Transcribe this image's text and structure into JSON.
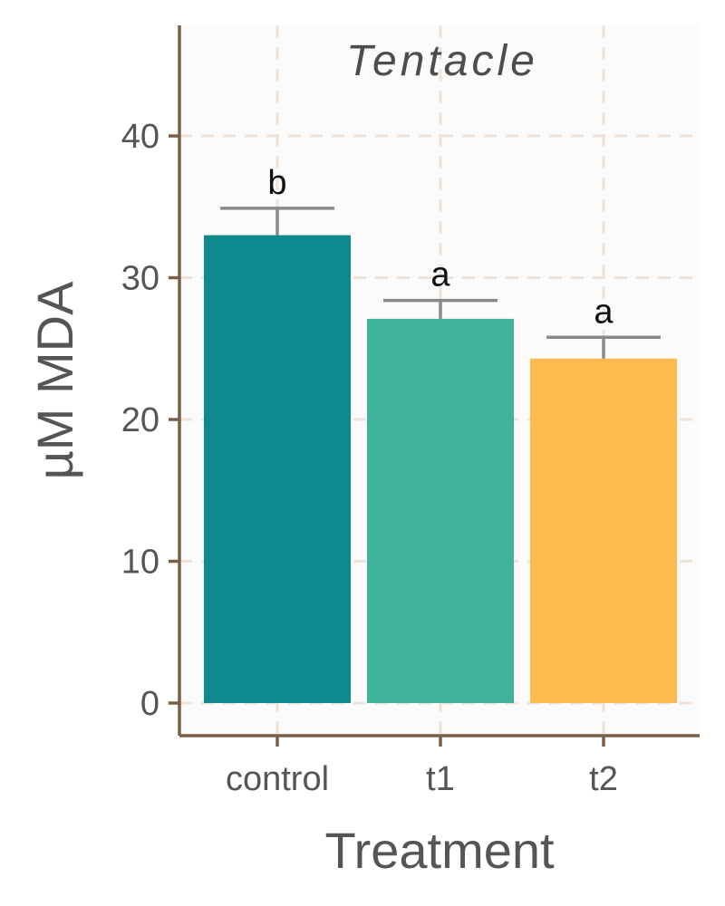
{
  "chart_data": {
    "type": "bar",
    "title": "Tentacle",
    "xlabel": "Treatment",
    "ylabel": "µM  MDA",
    "categories": [
      "control",
      "t1",
      "t2"
    ],
    "values": [
      33.0,
      27.1,
      24.3
    ],
    "errors": [
      1.9,
      1.3,
      1.5
    ],
    "significance": [
      "b",
      "a",
      "a"
    ],
    "colors": [
      "#0e8a8f",
      "#3fb49a",
      "#fbbb4e"
    ],
    "ylim": [
      -2.3,
      47.8
    ],
    "yticks": [
      0,
      10,
      20,
      30,
      40
    ],
    "grid": true,
    "grid_color": "#f0e2d6",
    "axis_color": "#7a5f48",
    "error_bar_color": "#8a8a8a",
    "panel_background": "#fbfbfb"
  }
}
